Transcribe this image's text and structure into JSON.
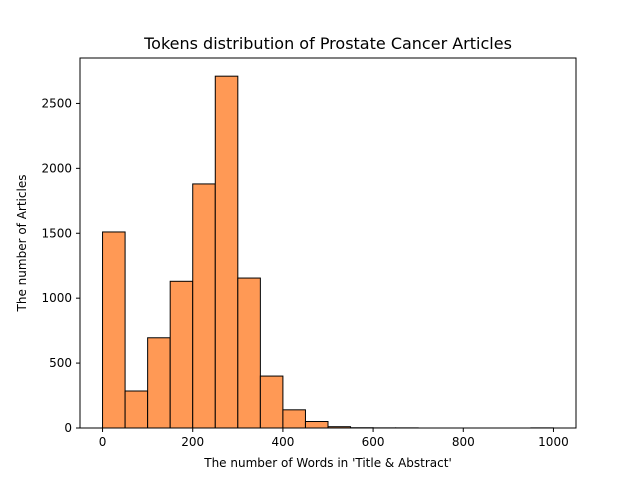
{
  "chart_data": {
    "type": "bar",
    "title": "Tokens distribution of Prostate Cancer Articles",
    "xlabel": "The number of Words in  'Title & Abstract'",
    "ylabel": "The number of Articles",
    "bin_width": 50,
    "bins": [
      {
        "start": 0,
        "end": 50,
        "value": 1510
      },
      {
        "start": 50,
        "end": 100,
        "value": 285
      },
      {
        "start": 100,
        "end": 150,
        "value": 695
      },
      {
        "start": 150,
        "end": 200,
        "value": 1130
      },
      {
        "start": 200,
        "end": 250,
        "value": 1880
      },
      {
        "start": 250,
        "end": 300,
        "value": 2710
      },
      {
        "start": 300,
        "end": 350,
        "value": 1155
      },
      {
        "start": 350,
        "end": 400,
        "value": 400
      },
      {
        "start": 400,
        "end": 450,
        "value": 140
      },
      {
        "start": 450,
        "end": 500,
        "value": 50
      },
      {
        "start": 500,
        "end": 550,
        "value": 10
      },
      {
        "start": 550,
        "end": 600,
        "value": 2
      },
      {
        "start": 600,
        "end": 650,
        "value": 1
      },
      {
        "start": 650,
        "end": 700,
        "value": 1
      },
      {
        "start": 700,
        "end": 750,
        "value": 0
      },
      {
        "start": 750,
        "end": 800,
        "value": 0
      },
      {
        "start": 800,
        "end": 850,
        "value": 0
      },
      {
        "start": 850,
        "end": 900,
        "value": 0
      },
      {
        "start": 900,
        "end": 950,
        "value": 0
      },
      {
        "start": 950,
        "end": 1000,
        "value": 1
      }
    ],
    "xlim": [
      -50,
      1050
    ],
    "ylim": [
      0,
      2850
    ],
    "xticks": [
      0,
      200,
      400,
      600,
      800,
      1000
    ],
    "yticks": [
      0,
      500,
      1000,
      1500,
      2000,
      2500
    ],
    "bar_color": "#ff9955",
    "edge_color": "#000000",
    "grid": false,
    "legend": "none"
  }
}
